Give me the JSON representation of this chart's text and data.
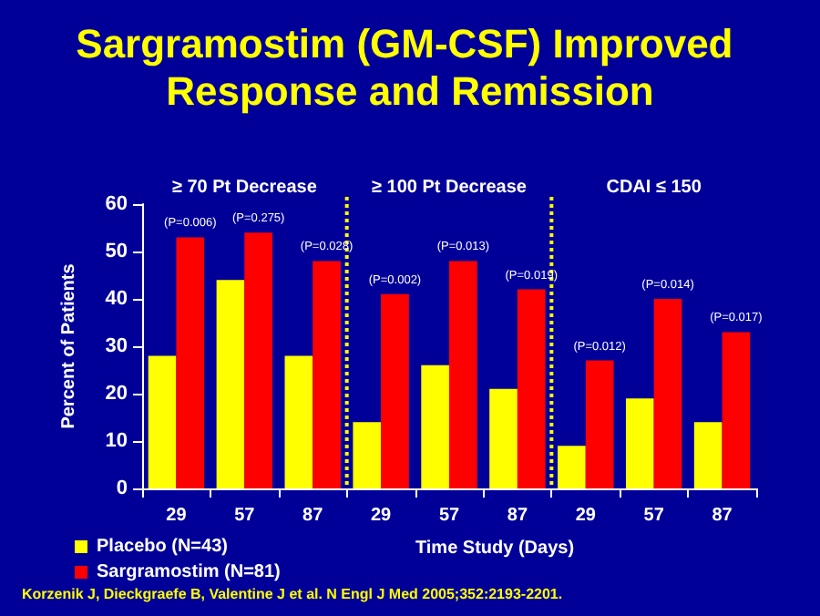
{
  "chart_data": {
    "type": "bar",
    "title": "Sargramostim (GM-CSF) Improved Response and Remission",
    "xlabel": "Time Study (Days)",
    "ylabel": "Percent of Patients",
    "categories": [
      "29",
      "57",
      "87",
      "29",
      "57",
      "87",
      "29",
      "57",
      "87"
    ],
    "series": [
      {
        "name": "Placebo (N=43)",
        "color": "#ffff00",
        "values": [
          28,
          44,
          28,
          14,
          26,
          21,
          9,
          19,
          14
        ]
      },
      {
        "name": "Sargramostim (N=81)",
        "color": "#ff0000",
        "values": [
          53,
          54,
          48,
          41,
          48,
          42,
          27,
          40,
          33
        ]
      }
    ],
    "ylim": [
      0,
      60
    ],
    "yticks": [
      0,
      10,
      20,
      30,
      40,
      50,
      60
    ],
    "grid": false,
    "legend": "bottom left",
    "annotations": [
      "≥ 70 Pt Decrease",
      "≥ 100 Pt Decrease",
      "CDAI ≤ 150",
      "Korzenik J, Dieckgraefe B, Valentine J et al. N Engl J Med 2005;352:2193-2201.",
      "(P=0.006)",
      "(P=0.275)",
      "(P=0.028)",
      "(P=0.002)",
      "(P=0.013)",
      "(P=0.019)",
      "(P=0.012)",
      "(P=0.014)",
      "(P=0.017)"
    ]
  }
}
